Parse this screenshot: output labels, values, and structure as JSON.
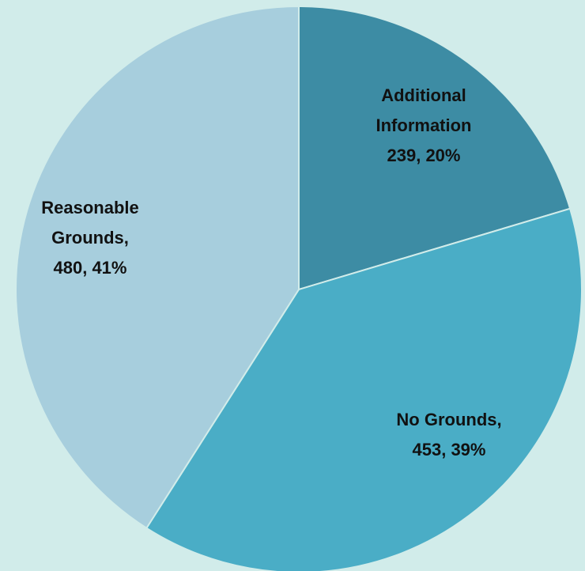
{
  "chart_data": {
    "type": "pie",
    "title": "",
    "slices": [
      {
        "name": "Additional Information",
        "value": 239,
        "percent": 20,
        "color": "#3d8ca4",
        "label_lines": [
          "Additional",
          "Information",
          "239, 20%"
        ]
      },
      {
        "name": "No Grounds",
        "value": 453,
        "percent": 39,
        "color": "#4aadc6",
        "label_lines": [
          "No Grounds,",
          "453, 39%"
        ]
      },
      {
        "name": "Reasonable Grounds",
        "value": 480,
        "percent": 41,
        "color": "#a7cedd",
        "label_lines": [
          "Reasonable",
          "Grounds,",
          "480, 41%"
        ]
      }
    ],
    "start_angle_deg": 0,
    "direction": "clockwise",
    "legend": "none",
    "background_color": "#d1ecea",
    "slice_border_color": "#d1ecea"
  }
}
